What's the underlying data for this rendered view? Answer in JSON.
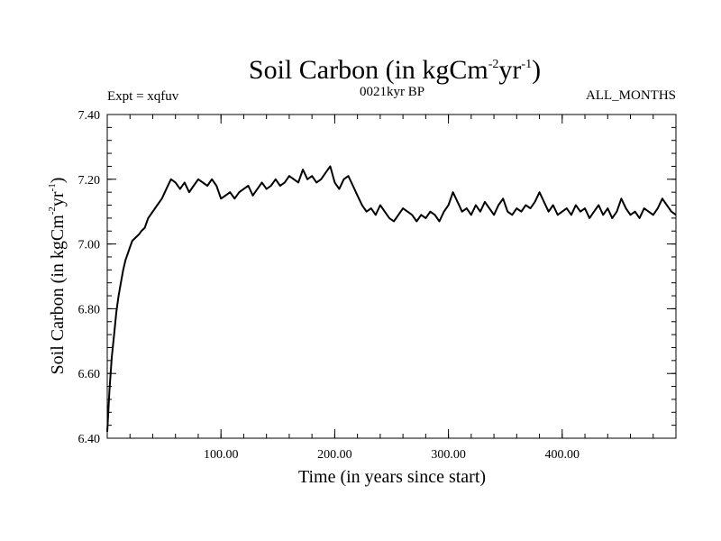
{
  "chart_data": {
    "type": "line",
    "title": {
      "base": "Soil Carbon (in kgCm",
      "exp1": "-2",
      "mid": "yr",
      "exp2": "-1",
      "end": ")"
    },
    "subtitle_left": "Expt = xqfuv",
    "subtitle_center": "0021kyr BP",
    "subtitle_right": "ALL_MONTHS",
    "xlabel": "Time (in years since start)",
    "ylabel": {
      "base": "Soil Carbon (in kgCm",
      "exp1": "-2",
      "mid": "yr",
      "exp2": "-1",
      "end": ")"
    },
    "xlim": [
      0,
      500
    ],
    "ylim": [
      6.4,
      7.4
    ],
    "x_ticks": [
      100,
      200,
      300,
      400
    ],
    "x_tick_labels": [
      "100.00",
      "200.00",
      "300.00",
      "400.00"
    ],
    "y_ticks": [
      6.4,
      6.6,
      6.8,
      7.0,
      7.2,
      7.4
    ],
    "y_tick_labels": [
      "6.40",
      "6.60",
      "6.80",
      "7.00",
      "7.20",
      "7.40"
    ],
    "grid": false,
    "series": [
      {
        "name": "Soil Carbon",
        "color": "#000000",
        "x": [
          0,
          2,
          4,
          6,
          8,
          10,
          12,
          14,
          16,
          18,
          20,
          22,
          25,
          28,
          30,
          33,
          36,
          40,
          44,
          48,
          52,
          56,
          60,
          64,
          68,
          72,
          76,
          80,
          84,
          88,
          92,
          96,
          100,
          104,
          108,
          112,
          116,
          120,
          124,
          128,
          132,
          136,
          140,
          144,
          148,
          152,
          156,
          160,
          164,
          168,
          172,
          176,
          180,
          184,
          188,
          192,
          196,
          200,
          204,
          208,
          212,
          216,
          220,
          224,
          228,
          232,
          236,
          240,
          244,
          248,
          252,
          256,
          260,
          264,
          268,
          272,
          276,
          280,
          284,
          288,
          292,
          296,
          300,
          304,
          308,
          312,
          316,
          320,
          324,
          328,
          332,
          336,
          340,
          344,
          348,
          352,
          356,
          360,
          364,
          368,
          372,
          376,
          380,
          384,
          388,
          392,
          396,
          400,
          404,
          408,
          412,
          416,
          420,
          424,
          428,
          432,
          436,
          440,
          444,
          448,
          452,
          456,
          460,
          464,
          468,
          472,
          476,
          480,
          484,
          488,
          492,
          496,
          500
        ],
        "y": [
          6.42,
          6.55,
          6.65,
          6.72,
          6.79,
          6.84,
          6.88,
          6.92,
          6.95,
          6.97,
          6.99,
          7.01,
          7.02,
          7.03,
          7.04,
          7.05,
          7.08,
          7.1,
          7.12,
          7.14,
          7.17,
          7.2,
          7.19,
          7.17,
          7.19,
          7.16,
          7.18,
          7.2,
          7.19,
          7.18,
          7.2,
          7.18,
          7.14,
          7.15,
          7.16,
          7.14,
          7.16,
          7.17,
          7.18,
          7.15,
          7.17,
          7.19,
          7.17,
          7.18,
          7.2,
          7.18,
          7.19,
          7.21,
          7.2,
          7.19,
          7.23,
          7.2,
          7.21,
          7.19,
          7.2,
          7.22,
          7.24,
          7.19,
          7.17,
          7.2,
          7.21,
          7.18,
          7.15,
          7.12,
          7.1,
          7.11,
          7.09,
          7.12,
          7.1,
          7.08,
          7.07,
          7.09,
          7.11,
          7.1,
          7.09,
          7.07,
          7.09,
          7.08,
          7.1,
          7.09,
          7.07,
          7.1,
          7.12,
          7.16,
          7.13,
          7.1,
          7.11,
          7.09,
          7.12,
          7.1,
          7.13,
          7.11,
          7.09,
          7.12,
          7.14,
          7.1,
          7.09,
          7.11,
          7.1,
          7.12,
          7.11,
          7.13,
          7.16,
          7.13,
          7.1,
          7.12,
          7.09,
          7.1,
          7.11,
          7.09,
          7.12,
          7.1,
          7.11,
          7.08,
          7.1,
          7.12,
          7.09,
          7.11,
          7.08,
          7.1,
          7.14,
          7.11,
          7.09,
          7.1,
          7.08,
          7.11,
          7.1,
          7.09,
          7.11,
          7.14,
          7.12,
          7.1,
          7.09
        ]
      }
    ]
  }
}
